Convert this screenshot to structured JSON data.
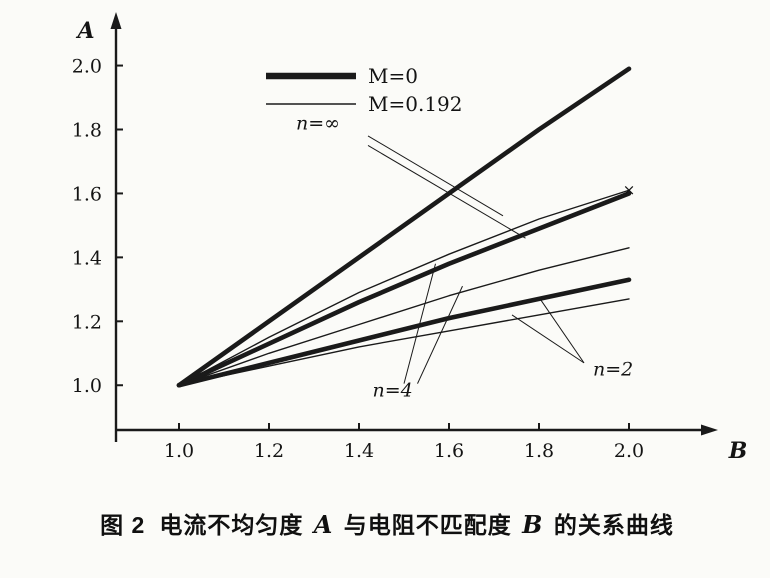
{
  "figure": {
    "caption": {
      "fig_label": "图 2",
      "segments": [
        {
          "text": "电流不均匀度 "
        },
        {
          "text": "A",
          "italic": true
        },
        {
          "text": " 与电阻不匹配度 "
        },
        {
          "text": "B",
          "italic": true
        },
        {
          "text": " 的关系曲线"
        }
      ]
    }
  },
  "chart_data": {
    "type": "line",
    "title": "",
    "xlabel": "B",
    "ylabel": "A",
    "xlim": [
      0.86,
      2.14
    ],
    "ylim": [
      0.86,
      2.13
    ],
    "grid": false,
    "ink": "#1a1a1a",
    "xticks": [
      {
        "v": 1.0,
        "label": "1.0"
      },
      {
        "v": 1.2,
        "label": "1.2"
      },
      {
        "v": 1.4,
        "label": "1.4"
      },
      {
        "v": 1.6,
        "label": "1.6"
      },
      {
        "v": 1.8,
        "label": "1.8"
      },
      {
        "v": 2.0,
        "label": "2.0"
      }
    ],
    "yticks": [
      {
        "v": 1.0,
        "label": "1.0"
      },
      {
        "v": 1.2,
        "label": "1.2"
      },
      {
        "v": 1.4,
        "label": "1.4"
      },
      {
        "v": 1.6,
        "label": "1.6"
      },
      {
        "v": 1.8,
        "label": "1.8"
      },
      {
        "v": 2.0,
        "label": "2.0"
      }
    ],
    "legend": {
      "position": "top-inside",
      "entries": [
        {
          "label": "M=0",
          "style": "thick"
        },
        {
          "label": "M=0.192",
          "style": "thin"
        }
      ]
    },
    "x": [
      1.0,
      1.2,
      1.4,
      1.6,
      1.8,
      2.0
    ],
    "series": [
      {
        "id": "m0-n-inf",
        "name": "M=0, n=∞",
        "style": "thick",
        "y": [
          1.0,
          1.2,
          1.4,
          1.6,
          1.8,
          1.99
        ]
      },
      {
        "id": "m0-n-4",
        "name": "M=0, n=4",
        "style": "thick",
        "y": [
          1.0,
          1.13,
          1.26,
          1.38,
          1.49,
          1.6
        ]
      },
      {
        "id": "m0-n-2",
        "name": "M=0, n=2",
        "style": "thick",
        "y": [
          1.0,
          1.07,
          1.14,
          1.21,
          1.27,
          1.33
        ]
      },
      {
        "id": "m0192-n-inf",
        "name": "M=0.192, n=∞",
        "style": "thin",
        "y": [
          1.0,
          1.15,
          1.29,
          1.41,
          1.52,
          1.61
        ]
      },
      {
        "id": "m0192-n-4",
        "name": "M=0.192, n=4",
        "style": "thin",
        "y": [
          1.0,
          1.1,
          1.19,
          1.28,
          1.36,
          1.43
        ]
      },
      {
        "id": "m0192-n-2",
        "name": "M=0.192, n=2",
        "style": "thin",
        "y": [
          1.0,
          1.06,
          1.12,
          1.17,
          1.22,
          1.27
        ]
      }
    ],
    "annotations": [
      {
        "id": "n-inf",
        "text": "n=∞",
        "x": 1.26,
        "y": 1.8,
        "leaders": [
          {
            "x1": 1.42,
            "y1": 1.78,
            "x2": 1.72,
            "y2": 1.53
          },
          {
            "x1": 1.42,
            "y1": 1.75,
            "x2": 1.77,
            "y2": 1.46
          }
        ]
      },
      {
        "id": "n-4",
        "text": "n=4",
        "x": 1.43,
        "y": 0.965,
        "leaders": [
          {
            "x1": 1.5,
            "y1": 1.005,
            "x2": 1.57,
            "y2": 1.38
          },
          {
            "x1": 1.53,
            "y1": 1.005,
            "x2": 1.63,
            "y2": 1.31
          }
        ]
      },
      {
        "id": "n-2",
        "text": "n=2",
        "x": 1.92,
        "y": 1.03,
        "leaders": [
          {
            "x1": 1.9,
            "y1": 1.07,
            "x2": 1.74,
            "y2": 1.22
          },
          {
            "x1": 1.9,
            "y1": 1.07,
            "x2": 1.8,
            "y2": 1.275
          }
        ]
      }
    ],
    "markers": [
      {
        "shape": "x",
        "x": 2.0,
        "y": 1.61
      }
    ]
  }
}
